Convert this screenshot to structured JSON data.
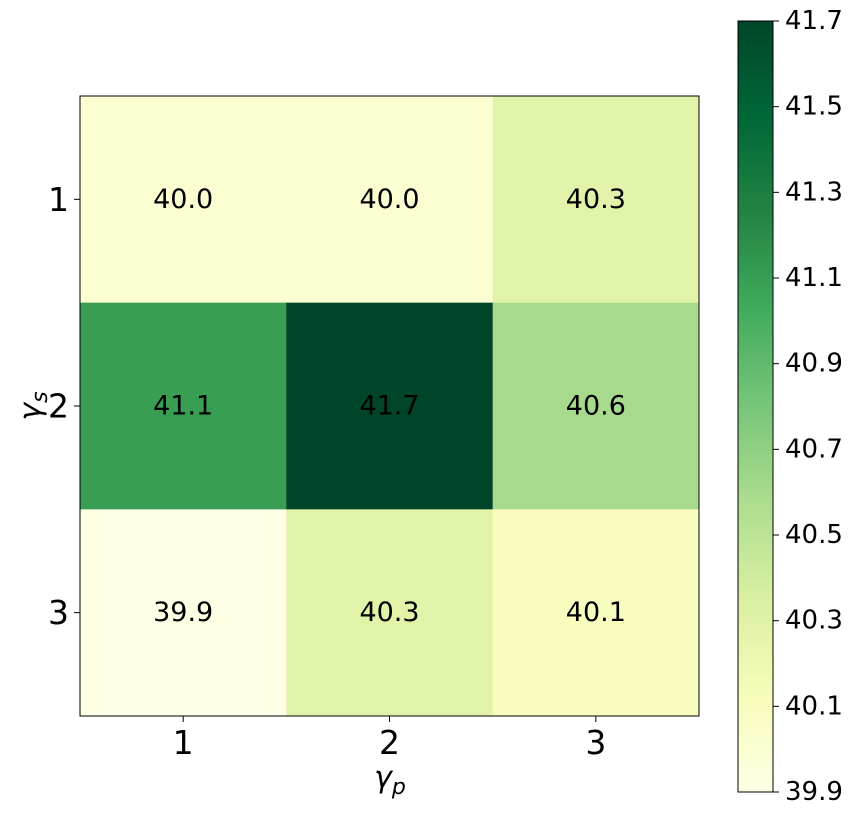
{
  "chart_data": {
    "type": "heatmap",
    "title": "",
    "xlabel": "γ",
    "xlabel_sub": "p",
    "ylabel": "γ",
    "ylabel_sub": "s",
    "x_categories": [
      "1",
      "2",
      "3"
    ],
    "y_categories": [
      "1",
      "2",
      "3"
    ],
    "values": [
      [
        40.0,
        40.0,
        40.3
      ],
      [
        41.1,
        41.7,
        40.6
      ],
      [
        39.9,
        40.3,
        40.1
      ]
    ],
    "cell_labels": [
      [
        "40.0",
        "40.0",
        "40.3"
      ],
      [
        "41.1",
        "41.7",
        "40.6"
      ],
      [
        "39.9",
        "40.3",
        "40.1"
      ]
    ],
    "colormap": "YlGn",
    "colormap_stops": [
      "#ffffe5",
      "#f7fcb9",
      "#d9f0a3",
      "#addd8e",
      "#78c679",
      "#41ab5d",
      "#238443",
      "#006837",
      "#004529"
    ],
    "color_range": [
      39.9,
      41.7
    ],
    "colorbar": {
      "position": "right",
      "ticks": [
        "39.9",
        "40.1",
        "40.3",
        "40.5",
        "40.7",
        "40.9",
        "41.1",
        "41.3",
        "41.5",
        "41.7"
      ],
      "tick_values": [
        39.9,
        40.1,
        40.3,
        40.5,
        40.7,
        40.9,
        41.1,
        41.3,
        41.5,
        41.7
      ]
    },
    "text_color": "#000000",
    "grid": false
  }
}
